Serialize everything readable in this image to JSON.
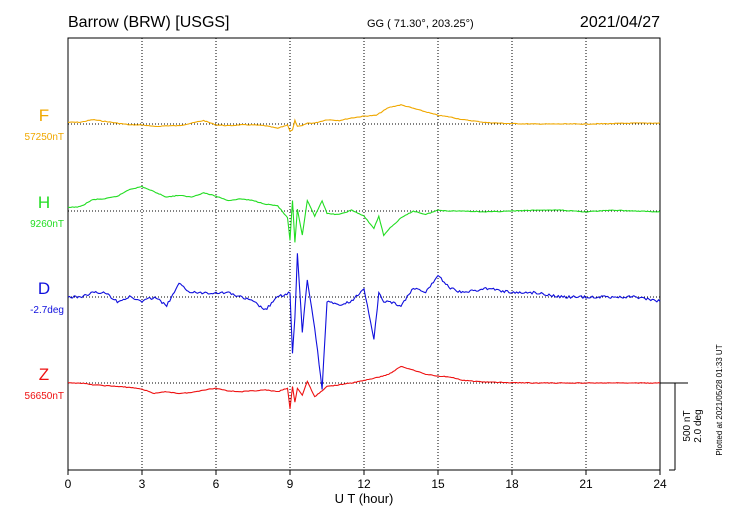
{
  "header": {
    "station": "Barrow (BRW)  [USGS]",
    "coords": "GG ( 71.30°, 203.25°)",
    "date": "2021/04/27"
  },
  "side_note": "Plotted at 2021/05/28 01:33 UT",
  "scale_note": [
    "500 nT",
    "2.0 deg"
  ],
  "chart_data": {
    "type": "line",
    "xlabel": "U T (hour)",
    "xlim": [
      0,
      24
    ],
    "xticks": [
      "0",
      "3",
      "6",
      "9",
      "12",
      "15",
      "18",
      "21",
      "24"
    ],
    "grid": true,
    "series": [
      {
        "name": "F",
        "baseline_label": "57250nT",
        "color": "#f0a800",
        "units": "nT",
        "baseline": 57250,
        "x": [
          0,
          0.5,
          1,
          1.5,
          2,
          2.5,
          3,
          3.5,
          4,
          4.5,
          5,
          5.5,
          6,
          6.5,
          7,
          7.5,
          8,
          8.5,
          8.9,
          9,
          9.1,
          9.2,
          9.3,
          9.5,
          9.7,
          10,
          10.5,
          11,
          11.5,
          12,
          12.5,
          13,
          13.5,
          14,
          14.5,
          15,
          15.5,
          16,
          17,
          18,
          19,
          20,
          21,
          22,
          23,
          24
        ],
        "y": [
          57260,
          57260,
          57275,
          57265,
          57255,
          57245,
          57245,
          57235,
          57240,
          57240,
          57255,
          57270,
          57245,
          57240,
          57245,
          57245,
          57240,
          57225,
          57245,
          57210,
          57215,
          57270,
          57235,
          57240,
          57255,
          57255,
          57275,
          57270,
          57285,
          57295,
          57300,
          57345,
          57360,
          57340,
          57320,
          57300,
          57290,
          57275,
          57258,
          57252,
          57250,
          57250,
          57250,
          57252,
          57255,
          57255
        ]
      },
      {
        "name": "H",
        "baseline_label": "9260nT",
        "color": "#22dd22",
        "units": "nT",
        "baseline": 9260,
        "x": [
          0,
          0.5,
          1,
          1.5,
          2,
          2.5,
          3,
          3.5,
          4,
          4.5,
          5,
          5.5,
          6,
          6.5,
          7,
          7.5,
          8,
          8.5,
          8.9,
          9,
          9.1,
          9.2,
          9.3,
          9.5,
          9.7,
          10,
          10.3,
          10.5,
          11,
          11.5,
          12,
          12.4,
          12.6,
          12.8,
          13,
          13.5,
          14,
          14.5,
          15,
          15.5,
          16,
          17,
          18,
          19,
          20,
          21,
          22,
          23,
          24
        ],
        "y": [
          9280,
          9285,
          9325,
          9330,
          9345,
          9385,
          9400,
          9370,
          9340,
          9350,
          9340,
          9365,
          9345,
          9320,
          9330,
          9320,
          9300,
          9290,
          9220,
          9090,
          9320,
          9080,
          9270,
          9120,
          9320,
          9230,
          9320,
          9245,
          9240,
          9265,
          9230,
          9160,
          9230,
          9120,
          9155,
          9220,
          9260,
          9240,
          9265,
          9260,
          9260,
          9255,
          9260,
          9265,
          9265,
          9255,
          9265,
          9260,
          9255
        ]
      },
      {
        "name": "D",
        "baseline_label": "-2.7deg",
        "color": "#1010dd",
        "units": "deg",
        "baseline": -2.7,
        "x": [
          0,
          0.5,
          1,
          1.5,
          2,
          2.5,
          3,
          3.5,
          4,
          4.5,
          5,
          5.5,
          6,
          6.5,
          7,
          7.5,
          8,
          8.5,
          9,
          9.1,
          9.2,
          9.3,
          9.5,
          9.7,
          10,
          10.3,
          10.5,
          11,
          11.5,
          12,
          12.4,
          12.6,
          12.8,
          13,
          13.5,
          14,
          14.5,
          15,
          15.5,
          16,
          17,
          18,
          19,
          20,
          21,
          22,
          23,
          24
        ],
        "y": [
          -2.7,
          -2.7,
          -2.6,
          -2.6,
          -2.8,
          -2.7,
          -2.8,
          -2.7,
          -2.9,
          -2.4,
          -2.6,
          -2.6,
          -2.6,
          -2.6,
          -2.7,
          -2.8,
          -3.0,
          -2.7,
          -2.6,
          -4.0,
          -3.2,
          -1.7,
          -3.5,
          -2.3,
          -3.4,
          -4.8,
          -2.8,
          -2.9,
          -2.8,
          -2.5,
          -3.7,
          -2.6,
          -2.8,
          -2.8,
          -2.9,
          -2.5,
          -2.6,
          -2.2,
          -2.5,
          -2.6,
          -2.5,
          -2.6,
          -2.6,
          -2.7,
          -2.7,
          -2.7,
          -2.7,
          -2.8
        ]
      },
      {
        "name": "Z",
        "baseline_label": "56650nT",
        "color": "#ee1111",
        "units": "nT",
        "baseline": 56650,
        "x": [
          0,
          0.5,
          1,
          1.5,
          2,
          2.5,
          3,
          3.5,
          4,
          4.5,
          5,
          5.5,
          6,
          6.5,
          7,
          7.5,
          8,
          8.5,
          8.9,
          9,
          9.1,
          9.2,
          9.3,
          9.5,
          9.7,
          10,
          10.5,
          11,
          11.5,
          12,
          12.5,
          13,
          13.5,
          14,
          14.5,
          15,
          15.5,
          16,
          17,
          18,
          19,
          20,
          21,
          22,
          23,
          24
        ],
        "y": [
          56650,
          56650,
          56640,
          56635,
          56630,
          56625,
          56615,
          56590,
          56600,
          56590,
          56595,
          56610,
          56620,
          56605,
          56600,
          56605,
          56610,
          56600,
          56620,
          56500,
          56630,
          56540,
          56620,
          56580,
          56660,
          56570,
          56630,
          56640,
          56650,
          56665,
          56680,
          56700,
          56745,
          56725,
          56700,
          56690,
          56685,
          56665,
          56655,
          56652,
          56650,
          56650,
          56650,
          56650,
          56650,
          56650
        ]
      }
    ]
  }
}
